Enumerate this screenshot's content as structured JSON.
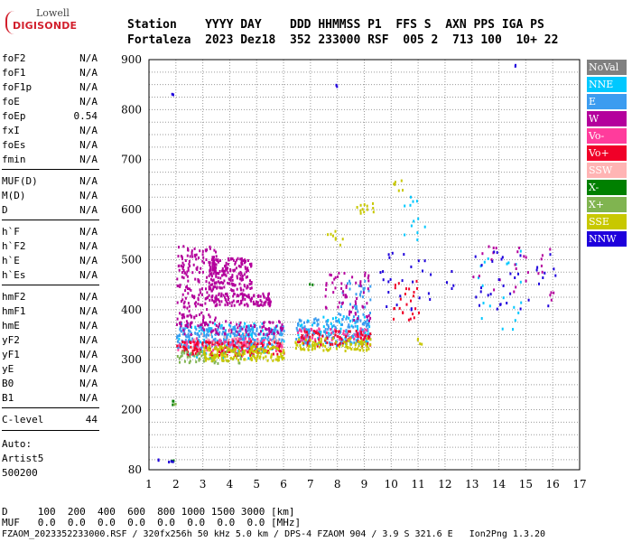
{
  "logo": {
    "line1": "Lowell",
    "line2": "DIGISONDE"
  },
  "header": {
    "line1": "Station    YYYY DAY    DDD HHMMSS P1  FFS S  AXN PPS IGA PS",
    "line2": "Fortaleza  2023 Dez18  352 233000 RSF  005 2  713 100  10+ 22"
  },
  "params": {
    "group1": [
      {
        "name": "foF2",
        "value": "N/A"
      },
      {
        "name": "foF1",
        "value": "N/A"
      },
      {
        "name": "foF1p",
        "value": "N/A"
      },
      {
        "name": "foE",
        "value": "N/A"
      },
      {
        "name": "foEp",
        "value": "0.54"
      },
      {
        "name": "fxI",
        "value": "N/A"
      },
      {
        "name": "foEs",
        "value": "N/A"
      },
      {
        "name": "fmin",
        "value": "N/A"
      }
    ],
    "group2": [
      {
        "name": "MUF(D)",
        "value": "N/A"
      },
      {
        "name": "M(D)",
        "value": "N/A"
      },
      {
        "name": "D",
        "value": "N/A"
      }
    ],
    "group3": [
      {
        "name": "h`F",
        "value": "N/A"
      },
      {
        "name": "h`F2",
        "value": "N/A"
      },
      {
        "name": "h`E",
        "value": "N/A"
      },
      {
        "name": "h`Es",
        "value": "N/A"
      }
    ],
    "group4": [
      {
        "name": "hmF2",
        "value": "N/A"
      },
      {
        "name": "hmF1",
        "value": "N/A"
      },
      {
        "name": "hmE",
        "value": "N/A"
      },
      {
        "name": "yF2",
        "value": "N/A"
      },
      {
        "name": "yF1",
        "value": "N/A"
      },
      {
        "name": "yE",
        "value": "N/A"
      },
      {
        "name": "B0",
        "value": "N/A"
      },
      {
        "name": "B1",
        "value": "N/A"
      }
    ],
    "group5": [
      {
        "name": "C-level",
        "value": "44"
      }
    ]
  },
  "auto": {
    "line1": "Auto:",
    "line2": "Artist5",
    "line3": "500200"
  },
  "legend": [
    {
      "label": "NoVal",
      "color": "#808080"
    },
    {
      "label": "NNE",
      "color": "#00c8ff"
    },
    {
      "label": "E",
      "color": "#3c9cf0"
    },
    {
      "label": "W",
      "color": "#b4009c"
    },
    {
      "label": "Vo-",
      "color": "#ff3c9c"
    },
    {
      "label": "Vo+",
      "color": "#f00028"
    },
    {
      "label": "SSW",
      "color": "#ffb4b4"
    },
    {
      "label": "X-",
      "color": "#008000"
    },
    {
      "label": "X+",
      "color": "#80b450"
    },
    {
      "label": "SSE",
      "color": "#c8c800"
    },
    {
      "label": "NNW",
      "color": "#1e00dc"
    }
  ],
  "bottom": {
    "d_row": "D     100  200  400  600  800 1000 1500 3000 [km]",
    "muf_row": "MUF   0.0  0.0  0.0  0.0  0.0  0.0  0.0  0.0 [MHz]",
    "footer": "FZAOM_2023352233000.RSF / 320fx256h 50 kHz 5.0 km / DPS-4 FZAOM 904 / 3.9 S 321.6 E   Ion2Png 1.3.20"
  },
  "chart_data": {
    "type": "scatter",
    "xlim": [
      1,
      17
    ],
    "ylim": [
      80,
      900
    ],
    "xticks": [
      1,
      2,
      3,
      4,
      5,
      6,
      7,
      8,
      9,
      10,
      11,
      12,
      13,
      14,
      15,
      16,
      17
    ],
    "yticks": [
      80,
      200,
      300,
      400,
      500,
      600,
      700,
      800,
      900
    ],
    "grid": true,
    "series": [
      {
        "name": "NoVal",
        "color": "#808080",
        "clusters": []
      },
      {
        "name": "NNE",
        "color": "#00c8ff",
        "clusters": [
          {
            "f": [
              2.0,
              6.0
            ],
            "h": [
              305,
              375
            ],
            "n": 160
          },
          {
            "f": [
              6.5,
              9.2
            ],
            "h": [
              330,
              390
            ],
            "n": 90
          },
          {
            "f": [
              10.4,
              11.3
            ],
            "h": [
              540,
              630
            ],
            "n": 12
          },
          {
            "f": [
              13.0,
              15.0
            ],
            "h": [
              360,
              520
            ],
            "n": 20
          }
        ]
      },
      {
        "name": "E",
        "color": "#3c9cf0",
        "clusters": [
          {
            "f": [
              2.0,
              6.0
            ],
            "h": [
              325,
              370
            ],
            "n": 260
          },
          {
            "f": [
              6.4,
              9.2
            ],
            "h": [
              335,
              385
            ],
            "n": 150
          },
          {
            "f": [
              8.0,
              9.2
            ],
            "h": [
              360,
              470
            ],
            "n": 40
          }
        ]
      },
      {
        "name": "W",
        "color": "#b4009c",
        "clusters": [
          {
            "f": [
              2.0,
              3.5
            ],
            "h": [
              370,
              530
            ],
            "n": 200
          },
          {
            "f": [
              3.2,
              4.8
            ],
            "h": [
              440,
              505
            ],
            "n": 180
          },
          {
            "f": [
              3.3,
              5.5
            ],
            "h": [
              410,
              435
            ],
            "n": 110
          },
          {
            "f": [
              2.0,
              6.0
            ],
            "h": [
              350,
              380
            ],
            "n": 80
          },
          {
            "f": [
              7.5,
              9.2
            ],
            "h": [
              380,
              480
            ],
            "n": 60
          },
          {
            "f": [
              13.0,
              16.0
            ],
            "h": [
              420,
              530
            ],
            "n": 30
          }
        ]
      },
      {
        "name": "Vo-",
        "color": "#ff3c9c",
        "clusters": [
          {
            "f": [
              2.0,
              6.0
            ],
            "h": [
              320,
              345
            ],
            "n": 110
          },
          {
            "f": [
              6.5,
              9.2
            ],
            "h": [
              340,
              365
            ],
            "n": 60
          }
        ]
      },
      {
        "name": "Vo+",
        "color": "#f00028",
        "clusters": [
          {
            "f": [
              2.0,
              6.0
            ],
            "h": [
              310,
              340
            ],
            "n": 140
          },
          {
            "f": [
              6.5,
              9.2
            ],
            "h": [
              330,
              360
            ],
            "n": 70
          },
          {
            "f": [
              10.0,
              11.0
            ],
            "h": [
              380,
              460
            ],
            "n": 25
          }
        ]
      },
      {
        "name": "SSW",
        "color": "#ffb4b4",
        "clusters": [
          {
            "f": [
              2.5,
              6.0
            ],
            "h": [
              310,
              360
            ],
            "n": 30
          }
        ]
      },
      {
        "name": "X-",
        "color": "#008000",
        "clusters": [
          {
            "f": [
              1.8,
              1.9
            ],
            "h": [
              210,
              220
            ],
            "n": 3
          },
          {
            "f": [
              1.8,
              1.9
            ],
            "h": [
              99,
              101
            ],
            "n": 3
          },
          {
            "f": [
              6.9,
              7.1
            ],
            "h": [
              450,
              455
            ],
            "n": 2
          }
        ]
      },
      {
        "name": "X+",
        "color": "#80b450",
        "clusters": [
          {
            "f": [
              1.8,
              2.0
            ],
            "h": [
              210,
              220
            ],
            "n": 2
          },
          {
            "f": [
              2.0,
              4.5
            ],
            "h": [
              295,
              320
            ],
            "n": 50
          }
        ]
      },
      {
        "name": "SSE",
        "color": "#c8c800",
        "clusters": [
          {
            "f": [
              3.0,
              6.0
            ],
            "h": [
              300,
              330
            ],
            "n": 160
          },
          {
            "f": [
              6.4,
              9.2
            ],
            "h": [
              320,
              345
            ],
            "n": 90
          },
          {
            "f": [
              7.6,
              8.2
            ],
            "h": [
              530,
              575
            ],
            "n": 8
          },
          {
            "f": [
              8.7,
              9.4
            ],
            "h": [
              595,
              620
            ],
            "n": 12
          },
          {
            "f": [
              10.0,
              10.8
            ],
            "h": [
              640,
              665
            ],
            "n": 6
          },
          {
            "f": [
              10.8,
              11.2
            ],
            "h": [
              330,
              345
            ],
            "n": 4
          }
        ]
      },
      {
        "name": "NNW",
        "color": "#1e00dc",
        "clusters": [
          {
            "f": [
              1.8,
              1.9
            ],
            "h": [
              830,
              835
            ],
            "n": 2
          },
          {
            "f": [
              1.25,
              1.35
            ],
            "h": [
              100,
              103
            ],
            "n": 2
          },
          {
            "f": [
              1.7,
              1.9
            ],
            "h": [
              98,
              101
            ],
            "n": 3
          },
          {
            "f": [
              7.9,
              8.1
            ],
            "h": [
              847,
              852
            ],
            "n": 2
          },
          {
            "f": [
              9.5,
              11.5
            ],
            "h": [
              400,
              530
            ],
            "n": 25
          },
          {
            "f": [
              12.0,
              12.4
            ],
            "h": [
              430,
              490
            ],
            "n": 4
          },
          {
            "f": [
              13.0,
              16.2
            ],
            "h": [
              400,
              520
            ],
            "n": 35
          },
          {
            "f": [
              14.5,
              14.6
            ],
            "h": [
              889,
              893
            ],
            "n": 2
          }
        ]
      }
    ]
  }
}
